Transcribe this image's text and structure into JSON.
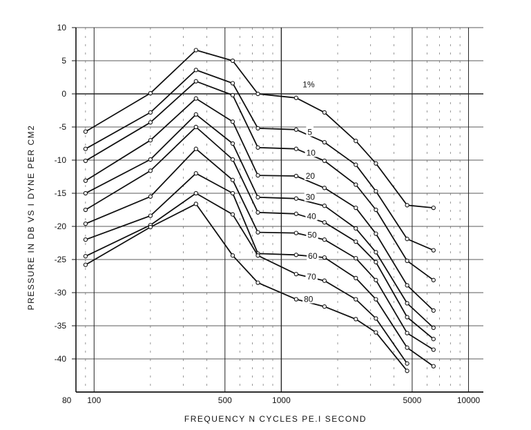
{
  "chart_data": {
    "type": "line",
    "title": "",
    "xlabel": "FREQUENCY  N CYCLES  PE.I  SECOND",
    "ylabel": "PRESSURE  IN  DB  VS  I  DYNE  PER  CM2",
    "x_scale": "log",
    "xlim": [
      80,
      12000
    ],
    "ylim": [
      -45,
      10
    ],
    "x_tick_labels": [
      "80",
      "100",
      "500",
      "1000",
      "5000",
      "10000"
    ],
    "x_tick_values": [
      80,
      100,
      500,
      1000,
      5000,
      10000
    ],
    "y_tick_labels": [
      "10",
      "5",
      "0",
      "-5",
      "-10",
      "-15",
      "-20",
      "-25",
      "-30",
      "-35",
      "-40"
    ],
    "y_tick_values": [
      10,
      5,
      0,
      -5,
      -10,
      -15,
      -20,
      -25,
      -30,
      -35,
      -40
    ],
    "grid": true,
    "x": [
      90,
      200,
      350,
      550,
      750,
      1200,
      1700,
      2500,
      3200,
      4700,
      6500
    ],
    "series": [
      {
        "name": "1%",
        "values": [
          -5.7,
          0.1,
          6.6,
          5.0,
          0.0,
          -0.6,
          -2.8,
          -7.1,
          -10.5,
          -16.8,
          -17.2
        ]
      },
      {
        "name": "5",
        "values": [
          -8.3,
          -2.8,
          3.6,
          1.6,
          -5.2,
          -5.4,
          -7.3,
          -10.7,
          -14.7,
          -21.9,
          -23.6
        ]
      },
      {
        "name": "10",
        "values": [
          -10.1,
          -4.3,
          1.9,
          -0.2,
          -8.1,
          -8.3,
          -10.1,
          -13.7,
          -17.5,
          -25.2,
          -28.1
        ]
      },
      {
        "name": "20",
        "values": [
          -13.1,
          -7.0,
          -0.7,
          -4.2,
          -12.3,
          -12.4,
          -14.2,
          -17.2,
          -21.1,
          -28.9,
          -32.7
        ]
      },
      {
        "name": "30",
        "values": [
          -15.0,
          -9.9,
          -3.1,
          -7.5,
          -15.6,
          -15.8,
          -16.9,
          -20.3,
          -23.9,
          -31.6,
          -35.3
        ]
      },
      {
        "name": "40",
        "values": [
          -17.5,
          -11.6,
          -5.0,
          -9.9,
          -17.9,
          -18.1,
          -19.4,
          -22.3,
          -25.4,
          -33.7,
          -37.0
        ]
      },
      {
        "name": "50",
        "values": [
          -19.6,
          -15.5,
          -8.3,
          -13.0,
          -20.9,
          -21.0,
          -22.0,
          -24.8,
          -28.1,
          -36.1,
          -38.6
        ]
      },
      {
        "name": "60",
        "values": [
          -22.0,
          -18.4,
          -12.0,
          -15.0,
          -24.1,
          -24.3,
          -24.7,
          -27.8,
          -31.0,
          -38.3,
          -41.1
        ]
      },
      {
        "name": "70",
        "values": [
          -24.5,
          -19.8,
          -15.0,
          -18.2,
          -24.4,
          -27.2,
          -28.2,
          -31.0,
          -33.9,
          -40.7,
          null
        ]
      },
      {
        "name": "80",
        "values": [
          -25.8,
          -20.1,
          -16.6,
          -24.4,
          -28.5,
          -31.0,
          -32.1,
          -34.0,
          -36.0,
          -41.8,
          null
        ]
      }
    ],
    "series_label_positions": [
      {
        "x": 1300,
        "y": 1.0
      },
      {
        "x": 1380,
        "y": -6.2
      },
      {
        "x": 1360,
        "y": -9.3
      },
      {
        "x": 1350,
        "y": -12.8
      },
      {
        "x": 1350,
        "y": -16.0
      },
      {
        "x": 1370,
        "y": -18.9
      },
      {
        "x": 1380,
        "y": -21.7
      },
      {
        "x": 1390,
        "y": -24.9
      },
      {
        "x": 1370,
        "y": -28.0
      },
      {
        "x": 1320,
        "y": -31.4
      }
    ],
    "legend": "none"
  }
}
